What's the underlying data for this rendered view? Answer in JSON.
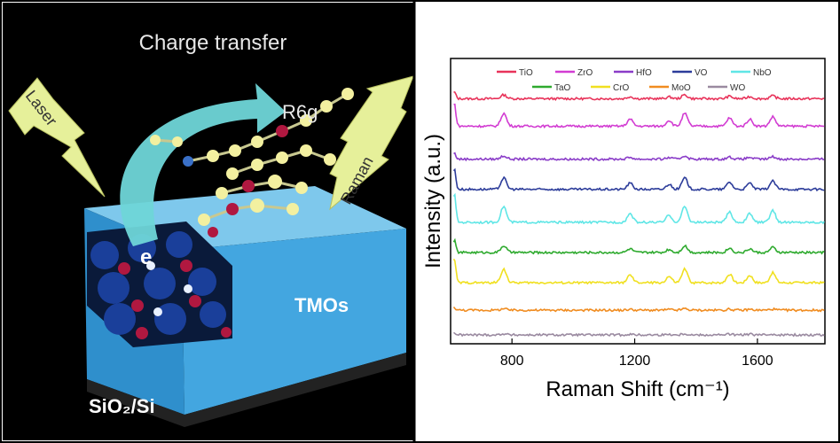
{
  "left_panel": {
    "title": "Charge transfer",
    "laser_label": "Laser",
    "raman_label": "Raman",
    "molecule_label": "R6g",
    "electron_label": "e",
    "tmo_label": "TMOs",
    "substrate_label": "SiO₂/Si"
  },
  "colors": {
    "left_background": "#000000",
    "slab_top": "#7ec8ec",
    "slab_front": "#3aa0dc",
    "arrow": "#6fd6d8",
    "lightning": "#e6f09a",
    "atom_yellow": "#f3f0a0",
    "atom_red": "#b01840",
    "atom_blue": "#1a3f9a"
  },
  "chart_data": {
    "type": "line",
    "title": "",
    "xlabel": "Raman Shift (cm⁻¹)",
    "ylabel": "Intensity (a.u.)",
    "xlim": [
      600,
      1820
    ],
    "xticks": [
      800,
      1200,
      1600
    ],
    "grid": false,
    "legend_position": "top",
    "peaks_cm": [
      612,
      773,
      1185,
      1312,
      1363,
      1509,
      1575,
      1650
    ],
    "series": [
      {
        "name": "TiO",
        "color": "#e8335a",
        "offset": 8.6,
        "peak_scale": 0.25
      },
      {
        "name": "ZrO",
        "color": "#d23cd2",
        "offset": 7.6,
        "peak_scale": 0.85
      },
      {
        "name": "HfO",
        "color": "#8a3cc8",
        "offset": 6.4,
        "peak_scale": 0.22
      },
      {
        "name": "VO",
        "color": "#2c3c9a",
        "offset": 5.3,
        "peak_scale": 0.75
      },
      {
        "name": "NbO",
        "color": "#5fe6e6",
        "offset": 4.1,
        "peak_scale": 1.05
      },
      {
        "name": "TaO",
        "color": "#2eaa2e",
        "offset": 3.0,
        "peak_scale": 0.45
      },
      {
        "name": "CrO",
        "color": "#f0e020",
        "offset": 1.9,
        "peak_scale": 0.9
      },
      {
        "name": "MoO",
        "color": "#f08c20",
        "offset": 0.9,
        "peak_scale": 0.1
      },
      {
        "name": "WO",
        "color": "#9a8aa0",
        "offset": 0.0,
        "peak_scale": 0.08
      }
    ]
  }
}
